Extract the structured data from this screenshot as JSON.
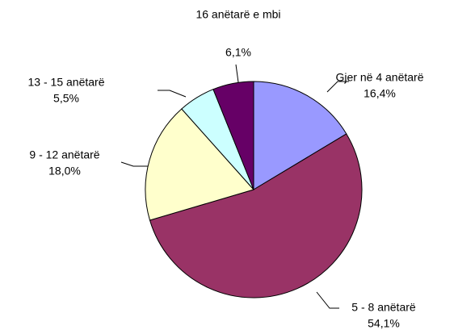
{
  "chart_data": {
    "type": "pie",
    "categories": [
      "Gjer në 4 anëtarë",
      "5 - 8 anëtarë",
      "9 - 12 anëtarë",
      "13 - 15 anëtarë",
      "16 anëtarë e mbi"
    ],
    "values": [
      16.4,
      54.1,
      18.0,
      5.5,
      6.1
    ],
    "value_labels": [
      "16,4%",
      "54,1%",
      "18,0%",
      "5,5%",
      "6,1%"
    ],
    "colors": [
      "#9999ff",
      "#993366",
      "#ffffcc",
      "#ccffff",
      "#660066"
    ]
  }
}
